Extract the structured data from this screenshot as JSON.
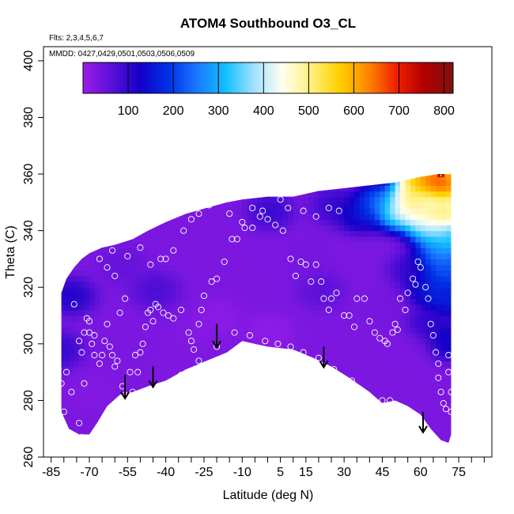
{
  "chart_data": {
    "type": "heatmap",
    "title": "ATOM4 Southbound O3_CL",
    "flights_note": "Flts: 2,3,4,5,6,7",
    "dates_note": "MMDD: 0427,0429,0501,0503,0506,0509",
    "xlabel": "Latitude (deg N)",
    "ylabel": "Theta (C)",
    "xlim": [
      -88,
      88
    ],
    "ylim": [
      260,
      405
    ],
    "x_ticks": [
      -85,
      -70,
      -55,
      -40,
      -25,
      -10,
      5,
      15,
      30,
      45,
      60,
      75
    ],
    "x_minor_ticks": [
      -80,
      -75,
      -65,
      -60,
      -50,
      -45,
      -35,
      -30,
      -20,
      -15,
      -5,
      0,
      10,
      20,
      25,
      35,
      40,
      50,
      55,
      65,
      70,
      80,
      85
    ],
    "y_ticks": [
      260,
      280,
      300,
      320,
      340,
      360,
      380,
      400
    ],
    "colorbar": {
      "min": 0,
      "max": 820,
      "ticks": [
        100,
        200,
        300,
        400,
        500,
        600,
        700,
        800
      ],
      "colors": [
        "#9a1ee8",
        "#5a10d8",
        "#1400c8",
        "#0030e8",
        "#1a78ff",
        "#10c0ff",
        "#a0e0ff",
        "#fffff0",
        "#fff080",
        "#ffd000",
        "#ff8800",
        "#f02000",
        "#b00000",
        "#801010"
      ]
    },
    "coverage": {
      "top_boundary": [
        [
          -81,
          318
        ],
        [
          -79,
          323
        ],
        [
          -76,
          327
        ],
        [
          -73,
          330
        ],
        [
          -70,
          332
        ],
        [
          -65,
          334
        ],
        [
          -60,
          335
        ],
        [
          -53,
          337
        ],
        [
          -47,
          340
        ],
        [
          -40,
          343
        ],
        [
          -32,
          346
        ],
        [
          -24,
          348
        ],
        [
          -16,
          350
        ],
        [
          -10,
          351
        ],
        [
          0,
          352
        ],
        [
          10,
          352
        ],
        [
          20,
          354
        ],
        [
          30,
          355
        ],
        [
          40,
          356
        ],
        [
          50,
          357
        ],
        [
          55,
          358
        ],
        [
          60,
          359
        ],
        [
          67,
          360
        ],
        [
          72,
          360
        ]
      ],
      "bottom_boundary": [
        [
          -81,
          276
        ],
        [
          -78,
          270
        ],
        [
          -74,
          268
        ],
        [
          -70,
          268
        ],
        [
          -67,
          272
        ],
        [
          -63,
          278
        ],
        [
          -58,
          282
        ],
        [
          -53,
          283
        ],
        [
          -47,
          285
        ],
        [
          -40,
          287
        ],
        [
          -32,
          291
        ],
        [
          -24,
          294
        ],
        [
          -16,
          297
        ],
        [
          -10,
          301
        ],
        [
          0,
          299
        ],
        [
          10,
          298
        ],
        [
          18,
          295
        ],
        [
          25,
          292
        ],
        [
          32,
          288
        ],
        [
          40,
          283
        ],
        [
          45,
          279
        ],
        [
          50,
          280
        ],
        [
          55,
          278
        ],
        [
          60,
          275
        ],
        [
          64,
          270
        ],
        [
          68,
          266
        ],
        [
          71,
          265
        ],
        [
          72,
          268
        ],
        [
          72,
          290
        ]
      ]
    },
    "features": [
      {
        "lat": -58,
        "theta": 327,
        "value": 60
      },
      {
        "lat": -45,
        "theta": 318,
        "value": 90
      },
      {
        "lat": -30,
        "theta": 302,
        "value": 20
      },
      {
        "lat": -20,
        "theta": 308,
        "value": 10
      },
      {
        "lat": 0,
        "theta": 303,
        "value": 5
      },
      {
        "lat": -40,
        "theta": 288,
        "value": 25
      },
      {
        "lat": -70,
        "theta": 282,
        "value": 20
      },
      {
        "lat": 15,
        "theta": 330,
        "value": 40
      },
      {
        "lat": 20,
        "theta": 318,
        "value": 70
      },
      {
        "lat": 30,
        "theta": 298,
        "value": 30
      },
      {
        "lat": 45,
        "theta": 312,
        "value": 40
      },
      {
        "lat": 55,
        "theta": 300,
        "value": 30
      },
      {
        "lat": 56,
        "theta": 325,
        "value": 120
      },
      {
        "lat": 63,
        "theta": 318,
        "value": 200
      },
      {
        "lat": 62,
        "theta": 305,
        "value": 130
      },
      {
        "lat": -78,
        "theta": 316,
        "value": 140
      },
      {
        "lat": -83,
        "theta": 297,
        "value": 120
      },
      {
        "lat": 0,
        "theta": 346,
        "value": 110
      },
      {
        "lat": 25,
        "theta": 348,
        "value": 110
      },
      {
        "lat": 35,
        "theta": 345,
        "value": 180
      },
      {
        "lat": 42,
        "theta": 349,
        "value": 280
      },
      {
        "lat": 50,
        "theta": 346,
        "value": 480
      },
      {
        "lat": 55,
        "theta": 350,
        "value": 620
      },
      {
        "lat": 60,
        "theta": 345,
        "value": 560
      },
      {
        "lat": 63,
        "theta": 340,
        "value": 440
      },
      {
        "lat": 66,
        "theta": 330,
        "value": 300
      },
      {
        "lat": 68,
        "theta": 325,
        "value": 240
      },
      {
        "lat": 58,
        "theta": 357,
        "value": 700
      },
      {
        "lat": 65,
        "theta": 358,
        "value": 780
      },
      {
        "lat": 69,
        "theta": 355,
        "value": 760
      },
      {
        "lat": 69,
        "theta": 345,
        "value": 650
      },
      {
        "lat": 70,
        "theta": 335,
        "value": 400
      },
      {
        "lat": 71,
        "theta": 325,
        "value": 240
      },
      {
        "lat": 71,
        "theta": 315,
        "value": 200
      },
      {
        "lat": 71,
        "theta": 300,
        "value": 170
      }
    ],
    "background_value": 30,
    "high_marker": {
      "lat": 68,
      "theta": 360,
      "label": "1"
    },
    "observations": [
      [
        -83,
        320
      ],
      [
        -80,
        276
      ],
      [
        -81,
        286
      ],
      [
        -79,
        290
      ],
      [
        -77,
        283
      ],
      [
        -76,
        314
      ],
      [
        -74,
        301
      ],
      [
        -73,
        297
      ],
      [
        -72,
        286
      ],
      [
        -73,
        267
      ],
      [
        -74,
        272
      ],
      [
        -72,
        304
      ],
      [
        -71,
        309
      ],
      [
        -70,
        308
      ],
      [
        -70,
        304
      ],
      [
        -69,
        300
      ],
      [
        -68,
        303
      ],
      [
        -68,
        296
      ],
      [
        -66,
        293
      ],
      [
        -65,
        296
      ],
      [
        -64,
        301
      ],
      [
        -63,
        307
      ],
      [
        -62,
        299
      ],
      [
        -61,
        296
      ],
      [
        -60,
        292
      ],
      [
        -59,
        294
      ],
      [
        -57,
        285
      ],
      [
        -56,
        282
      ],
      [
        -54,
        290
      ],
      [
        -53,
        283
      ],
      [
        -52,
        296
      ],
      [
        -51,
        290
      ],
      [
        -50,
        297
      ],
      [
        -49,
        300
      ],
      [
        -48,
        306
      ],
      [
        -47,
        311
      ],
      [
        -46,
        312
      ],
      [
        -45,
        308
      ],
      [
        -44,
        314
      ],
      [
        -43,
        313
      ],
      [
        -41,
        311
      ],
      [
        -39,
        310
      ],
      [
        -37,
        309
      ],
      [
        -34,
        312
      ],
      [
        -31,
        304
      ],
      [
        -30,
        301
      ],
      [
        -29,
        298
      ],
      [
        -27,
        307
      ],
      [
        -26,
        312
      ],
      [
        -25,
        317
      ],
      [
        -22,
        322
      ],
      [
        -20,
        323
      ],
      [
        -17,
        329
      ],
      [
        -14,
        337
      ],
      [
        -12,
        337
      ],
      [
        -9,
        341
      ],
      [
        -6,
        341
      ],
      [
        -3,
        345
      ],
      [
        0,
        344
      ],
      [
        3,
        342
      ],
      [
        6,
        340
      ],
      [
        9,
        330
      ],
      [
        11,
        324
      ],
      [
        13,
        329
      ],
      [
        15,
        328
      ],
      [
        17,
        322
      ],
      [
        19,
        328
      ],
      [
        21,
        322
      ],
      [
        22,
        316
      ],
      [
        24,
        312
      ],
      [
        25,
        316
      ],
      [
        27,
        318
      ],
      [
        30,
        310
      ],
      [
        32,
        310
      ],
      [
        34,
        306
      ],
      [
        35,
        316
      ],
      [
        38,
        316
      ],
      [
        40,
        308
      ],
      [
        42,
        304
      ],
      [
        44,
        302
      ],
      [
        46,
        301
      ],
      [
        47,
        300
      ],
      [
        49,
        304
      ],
      [
        50,
        307
      ],
      [
        51,
        305
      ],
      [
        52,
        316
      ],
      [
        54,
        312
      ],
      [
        55,
        318
      ],
      [
        57,
        323
      ],
      [
        58,
        321
      ],
      [
        59,
        329
      ],
      [
        60,
        327
      ],
      [
        62,
        320
      ],
      [
        63,
        316
      ],
      [
        64,
        307
      ],
      [
        65,
        303
      ],
      [
        66,
        297
      ],
      [
        67,
        293
      ],
      [
        67,
        288
      ],
      [
        68,
        283
      ],
      [
        69,
        279
      ],
      [
        70,
        277
      ],
      [
        71,
        290
      ],
      [
        71,
        296
      ],
      [
        72,
        276
      ],
      [
        72,
        283
      ],
      [
        -40,
        330
      ],
      [
        -58,
        311
      ],
      [
        -56,
        316
      ],
      [
        -60,
        324
      ],
      [
        -66,
        330
      ],
      [
        -63,
        327
      ],
      [
        -61,
        333
      ],
      [
        -55,
        331
      ],
      [
        -50,
        334
      ],
      [
        -46,
        328
      ],
      [
        -42,
        330
      ],
      [
        -37,
        333
      ],
      [
        -33,
        340
      ],
      [
        -30,
        344
      ],
      [
        -27,
        346
      ],
      [
        -23,
        349
      ],
      [
        -15,
        346
      ],
      [
        -10,
        343
      ],
      [
        -6,
        348
      ],
      [
        -2,
        347
      ],
      [
        5,
        351
      ],
      [
        8,
        348
      ],
      [
        14,
        347
      ],
      [
        19,
        345
      ],
      [
        24,
        348
      ],
      [
        28,
        347
      ],
      [
        -38,
        283
      ],
      [
        -34,
        289
      ],
      [
        -27,
        294
      ],
      [
        -20,
        299
      ],
      [
        -13,
        304
      ],
      [
        -7,
        303
      ],
      [
        -1,
        301
      ],
      [
        4,
        300
      ],
      [
        9,
        299
      ],
      [
        14,
        297
      ],
      [
        20,
        295
      ],
      [
        26,
        291
      ],
      [
        33,
        287
      ],
      [
        39,
        281
      ],
      [
        45,
        280
      ],
      [
        48,
        280
      ],
      [
        53,
        276
      ]
    ],
    "arrows": [
      {
        "lat": -56,
        "theta_top": 289,
        "theta_bottom": 281
      },
      {
        "lat": -45,
        "theta_top": 292,
        "theta_bottom": 285
      },
      {
        "lat": -20,
        "theta_top": 307,
        "theta_bottom": 299
      },
      {
        "lat": 22,
        "theta_top": 299,
        "theta_bottom": 292
      },
      {
        "lat": 61,
        "theta_top": 276,
        "theta_bottom": 269
      }
    ]
  }
}
